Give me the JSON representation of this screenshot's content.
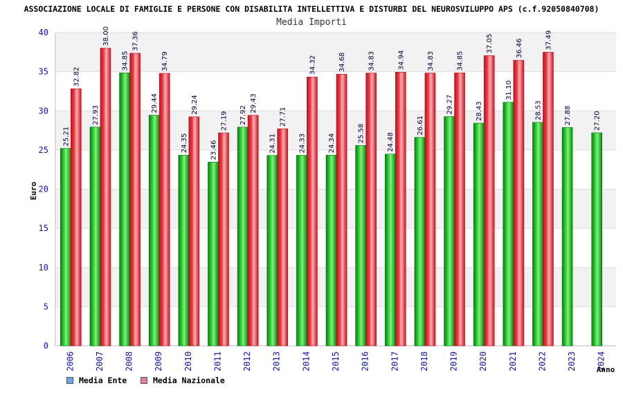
{
  "title": "ASSOCIAZIONE LOCALE DI FAMIGLIE E PERSONE CON DISABILITA INTELLETTIVA E DISTURBI DEL NEUROSVILUPPO APS (c.f.92050840708)",
  "subtitle": "Media Importi",
  "colors": {
    "ente": "#12b81a",
    "nazionale": "#e8303a",
    "legend_ente": "#6aa6e6",
    "legend_nazionale": "#e37aa8",
    "tick_text": "#1414a0",
    "band": "#f2f2f2"
  },
  "chart_data": {
    "type": "bar",
    "xlabel": "Anno",
    "ylabel": "Euro",
    "ylim": [
      0,
      40
    ],
    "yticks": [
      0,
      5,
      10,
      15,
      20,
      25,
      30,
      35,
      40
    ],
    "grid": true,
    "legend_position": "bottom-left",
    "categories": [
      "2006",
      "2007",
      "2008",
      "2009",
      "2010",
      "2011",
      "2012",
      "2013",
      "2014",
      "2015",
      "2016",
      "2017",
      "2018",
      "2019",
      "2020",
      "2021",
      "2022",
      "2023",
      "2024"
    ],
    "series": [
      {
        "name": "Media Ente",
        "values": [
          25.21,
          27.93,
          34.85,
          29.44,
          24.35,
          23.46,
          27.92,
          24.31,
          24.33,
          24.34,
          25.58,
          24.48,
          26.61,
          29.27,
          28.43,
          31.1,
          28.53,
          27.88,
          27.2
        ],
        "labels": [
          "25.21",
          "27.93",
          "34.85",
          "29.44",
          "24.35",
          "23.46",
          "27.92",
          "24.31",
          "24.33",
          "24.34",
          "25.58",
          "24.48",
          "26.61",
          "29.27",
          "28.43",
          "31.10",
          "28.53",
          "27.88",
          "27.20"
        ]
      },
      {
        "name": "Media Nazionale",
        "values": [
          32.82,
          38.0,
          37.36,
          34.79,
          29.24,
          27.19,
          29.43,
          27.71,
          34.32,
          34.68,
          34.83,
          34.94,
          34.83,
          34.85,
          37.05,
          36.46,
          37.49,
          null,
          null
        ],
        "labels": [
          "32.82",
          "38.00",
          "37.36",
          "34.79",
          "29.24",
          "27.19",
          "29.43",
          "27.71",
          "34.32",
          "34.68",
          "34.83",
          "34.94",
          "34.83",
          "34.85",
          "37.05",
          "36.46",
          "37.49",
          null,
          null
        ]
      }
    ]
  }
}
